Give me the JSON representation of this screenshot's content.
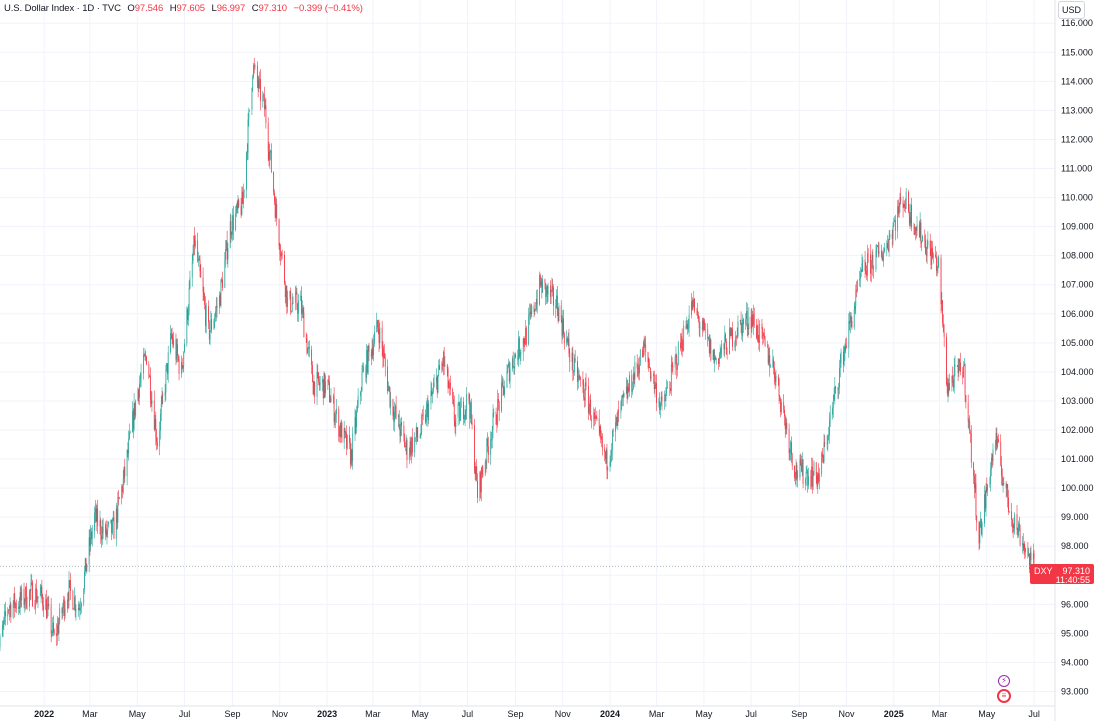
{
  "header": {
    "title": "U.S. Dollar Index · 1D · TVC",
    "o_label": "O",
    "o_value": "97.546",
    "h_label": "H",
    "h_value": "97.605",
    "l_label": "L",
    "l_value": "96.997",
    "c_label": "C",
    "c_value": "97.310",
    "change": "−0.399 (−0.41%)"
  },
  "currency": "USD",
  "price_tag": {
    "symbol": "DXY",
    "price": "97.310",
    "time": "11:40:55"
  },
  "colors": {
    "up": "#26a69a",
    "down": "#f23645",
    "grid": "#f0f3fa",
    "axis": "#e0e3eb"
  },
  "icons": {
    "event_bolt": "lightning-icon",
    "event_flag": "us-flag-icon"
  },
  "chart_data": {
    "type": "candlestick",
    "title": "U.S. Dollar Index",
    "interval": "1D",
    "exchange": "TVC",
    "ylim": [
      92.5,
      116.8
    ],
    "y_ticks": [
      "116.000",
      "115.000",
      "114.000",
      "113.000",
      "112.000",
      "111.000",
      "110.000",
      "109.000",
      "108.000",
      "107.000",
      "106.000",
      "105.000",
      "104.000",
      "103.000",
      "102.000",
      "101.000",
      "100.000",
      "99.000",
      "98.000",
      "97.000",
      "96.000",
      "95.000",
      "94.000",
      "93.000"
    ],
    "x_ticks": [
      {
        "label": "2022",
        "date": "2022-01-01",
        "bold": true
      },
      {
        "label": "Mar",
        "date": "2022-03-01"
      },
      {
        "label": "May",
        "date": "2022-05-01"
      },
      {
        "label": "Jul",
        "date": "2022-07-01"
      },
      {
        "label": "Sep",
        "date": "2022-09-01"
      },
      {
        "label": "Nov",
        "date": "2022-11-01"
      },
      {
        "label": "2023",
        "date": "2023-01-01",
        "bold": true
      },
      {
        "label": "Mar",
        "date": "2023-03-01"
      },
      {
        "label": "May",
        "date": "2023-05-01"
      },
      {
        "label": "Jul",
        "date": "2023-07-01"
      },
      {
        "label": "Sep",
        "date": "2023-09-01"
      },
      {
        "label": "Nov",
        "date": "2023-11-01"
      },
      {
        "label": "2024",
        "date": "2024-01-01",
        "bold": true
      },
      {
        "label": "Mar",
        "date": "2024-03-01"
      },
      {
        "label": "May",
        "date": "2024-05-01"
      },
      {
        "label": "Jul",
        "date": "2024-07-01"
      },
      {
        "label": "Sep",
        "date": "2024-09-01"
      },
      {
        "label": "Nov",
        "date": "2024-11-01"
      },
      {
        "label": "2025",
        "date": "2025-01-01",
        "bold": true
      },
      {
        "label": "Mar",
        "date": "2025-03-01"
      },
      {
        "label": "May",
        "date": "2025-05-01"
      },
      {
        "label": "Jul",
        "date": "2025-07-01"
      }
    ],
    "last_close": 97.31,
    "series": [
      {
        "date": "2021-11-01",
        "value": 94.1
      },
      {
        "date": "2021-11-15",
        "value": 95.9
      },
      {
        "date": "2021-12-01",
        "value": 96.1
      },
      {
        "date": "2021-12-15",
        "value": 96.4
      },
      {
        "date": "2022-01-01",
        "value": 96.2
      },
      {
        "date": "2022-01-14",
        "value": 94.8
      },
      {
        "date": "2022-02-01",
        "value": 96.5
      },
      {
        "date": "2022-02-15",
        "value": 95.9
      },
      {
        "date": "2022-03-07",
        "value": 99.0
      },
      {
        "date": "2022-03-20",
        "value": 98.4
      },
      {
        "date": "2022-04-01",
        "value": 98.6
      },
      {
        "date": "2022-04-15",
        "value": 100.5
      },
      {
        "date": "2022-05-01",
        "value": 103.3
      },
      {
        "date": "2022-05-13",
        "value": 104.6
      },
      {
        "date": "2022-05-27",
        "value": 101.6
      },
      {
        "date": "2022-06-14",
        "value": 105.2
      },
      {
        "date": "2022-06-27",
        "value": 104.0
      },
      {
        "date": "2022-07-14",
        "value": 108.5
      },
      {
        "date": "2022-08-01",
        "value": 105.3
      },
      {
        "date": "2022-08-15",
        "value": 106.5
      },
      {
        "date": "2022-08-29",
        "value": 109.0
      },
      {
        "date": "2022-09-14",
        "value": 109.8
      },
      {
        "date": "2022-09-27",
        "value": 114.5
      },
      {
        "date": "2022-10-13",
        "value": 113.0
      },
      {
        "date": "2022-10-27",
        "value": 109.5
      },
      {
        "date": "2022-11-11",
        "value": 106.4
      },
      {
        "date": "2022-11-28",
        "value": 106.3
      },
      {
        "date": "2022-12-14",
        "value": 103.6
      },
      {
        "date": "2023-01-01",
        "value": 103.5
      },
      {
        "date": "2023-01-18",
        "value": 102.0
      },
      {
        "date": "2023-02-01",
        "value": 101.1
      },
      {
        "date": "2023-02-15",
        "value": 103.8
      },
      {
        "date": "2023-03-08",
        "value": 105.6
      },
      {
        "date": "2023-03-24",
        "value": 103.0
      },
      {
        "date": "2023-04-14",
        "value": 101.3
      },
      {
        "date": "2023-05-01",
        "value": 101.9
      },
      {
        "date": "2023-05-31",
        "value": 104.4
      },
      {
        "date": "2023-06-15",
        "value": 102.3
      },
      {
        "date": "2023-07-03",
        "value": 103.1
      },
      {
        "date": "2023-07-14",
        "value": 99.8
      },
      {
        "date": "2023-08-01",
        "value": 102.0
      },
      {
        "date": "2023-08-25",
        "value": 104.2
      },
      {
        "date": "2023-09-15",
        "value": 105.3
      },
      {
        "date": "2023-10-03",
        "value": 107.0
      },
      {
        "date": "2023-10-25",
        "value": 106.3
      },
      {
        "date": "2023-11-15",
        "value": 104.1
      },
      {
        "date": "2023-12-01",
        "value": 103.2
      },
      {
        "date": "2023-12-27",
        "value": 100.9
      },
      {
        "date": "2024-01-15",
        "value": 102.7
      },
      {
        "date": "2024-02-14",
        "value": 104.8
      },
      {
        "date": "2024-03-08",
        "value": 102.7
      },
      {
        "date": "2024-04-16",
        "value": 106.3
      },
      {
        "date": "2024-05-15",
        "value": 104.4
      },
      {
        "date": "2024-06-14",
        "value": 105.5
      },
      {
        "date": "2024-07-01",
        "value": 105.9
      },
      {
        "date": "2024-07-31",
        "value": 104.1
      },
      {
        "date": "2024-08-27",
        "value": 100.6
      },
      {
        "date": "2024-09-27",
        "value": 100.4
      },
      {
        "date": "2024-10-25",
        "value": 104.3
      },
      {
        "date": "2024-11-22",
        "value": 107.5
      },
      {
        "date": "2024-12-20",
        "value": 108.2
      },
      {
        "date": "2025-01-13",
        "value": 110.0
      },
      {
        "date": "2025-02-03",
        "value": 108.8
      },
      {
        "date": "2025-02-28",
        "value": 107.6
      },
      {
        "date": "2025-03-11",
        "value": 103.5
      },
      {
        "date": "2025-04-01",
        "value": 104.2
      },
      {
        "date": "2025-04-21",
        "value": 98.3
      },
      {
        "date": "2025-05-12",
        "value": 101.7
      },
      {
        "date": "2025-05-30",
        "value": 99.3
      },
      {
        "date": "2025-06-16",
        "value": 98.2
      },
      {
        "date": "2025-06-27",
        "value": 97.4
      },
      {
        "date": "2025-07-01",
        "value": 97.31
      }
    ]
  }
}
